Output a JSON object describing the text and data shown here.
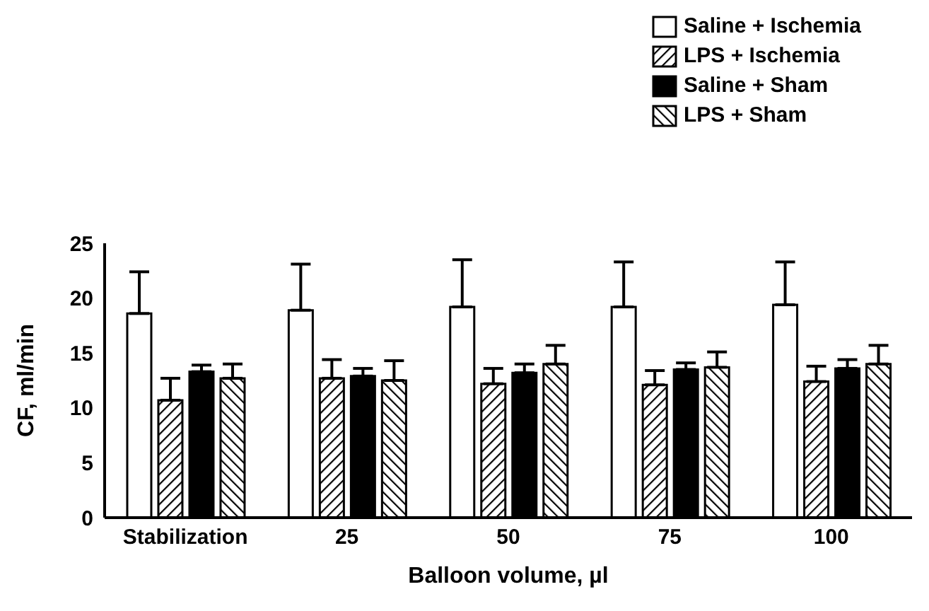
{
  "chart_data": {
    "type": "bar",
    "xlabel": "Balloon volume, µl",
    "ylabel": "CF, ml/min",
    "categories": [
      "Stabilization",
      "25",
      "50",
      "75",
      "100"
    ],
    "series": [
      {
        "name": "Saline + Ischemia",
        "color": "#ffffff",
        "values": [
          18.6,
          18.9,
          19.2,
          19.2,
          19.4
        ],
        "errors": [
          [
            18.6,
            22.4
          ],
          [
            18.9,
            23.1
          ],
          [
            19.2,
            23.5
          ],
          [
            19.2,
            23.3
          ],
          [
            19.4,
            23.3
          ]
        ]
      },
      {
        "name": "LPS + Ischemia",
        "color": "#000000",
        "values": [
          10.7,
          12.7,
          12.2,
          12.1,
          12.4
        ],
        "errors": [
          [
            10.7,
            12.7
          ],
          [
            12.7,
            14.4
          ],
          [
            12.2,
            13.6
          ],
          [
            12.1,
            13.4
          ],
          [
            12.4,
            13.8
          ]
        ]
      },
      {
        "name": "Saline + Sham",
        "color": "#000000",
        "values": [
          13.3,
          12.9,
          13.2,
          13.5,
          13.6
        ],
        "errors": [
          [
            13.3,
            13.9
          ],
          [
            12.9,
            13.6
          ],
          [
            13.2,
            14.0
          ],
          [
            13.5,
            14.1
          ],
          [
            13.6,
            14.4
          ]
        ]
      },
      {
        "name": "LPS + Sham",
        "color": "#000000",
        "values": [
          12.7,
          12.5,
          14.0,
          13.7,
          14.0
        ],
        "errors": [
          [
            12.7,
            14.0
          ],
          [
            12.5,
            14.3
          ],
          [
            14.0,
            15.7
          ],
          [
            13.7,
            15.1
          ],
          [
            14.0,
            15.7
          ]
        ]
      }
    ],
    "ylim": [
      0,
      25
    ],
    "yticks": [
      0,
      5,
      10,
      15,
      20,
      25
    ],
    "grid": false,
    "legend": "top right"
  }
}
